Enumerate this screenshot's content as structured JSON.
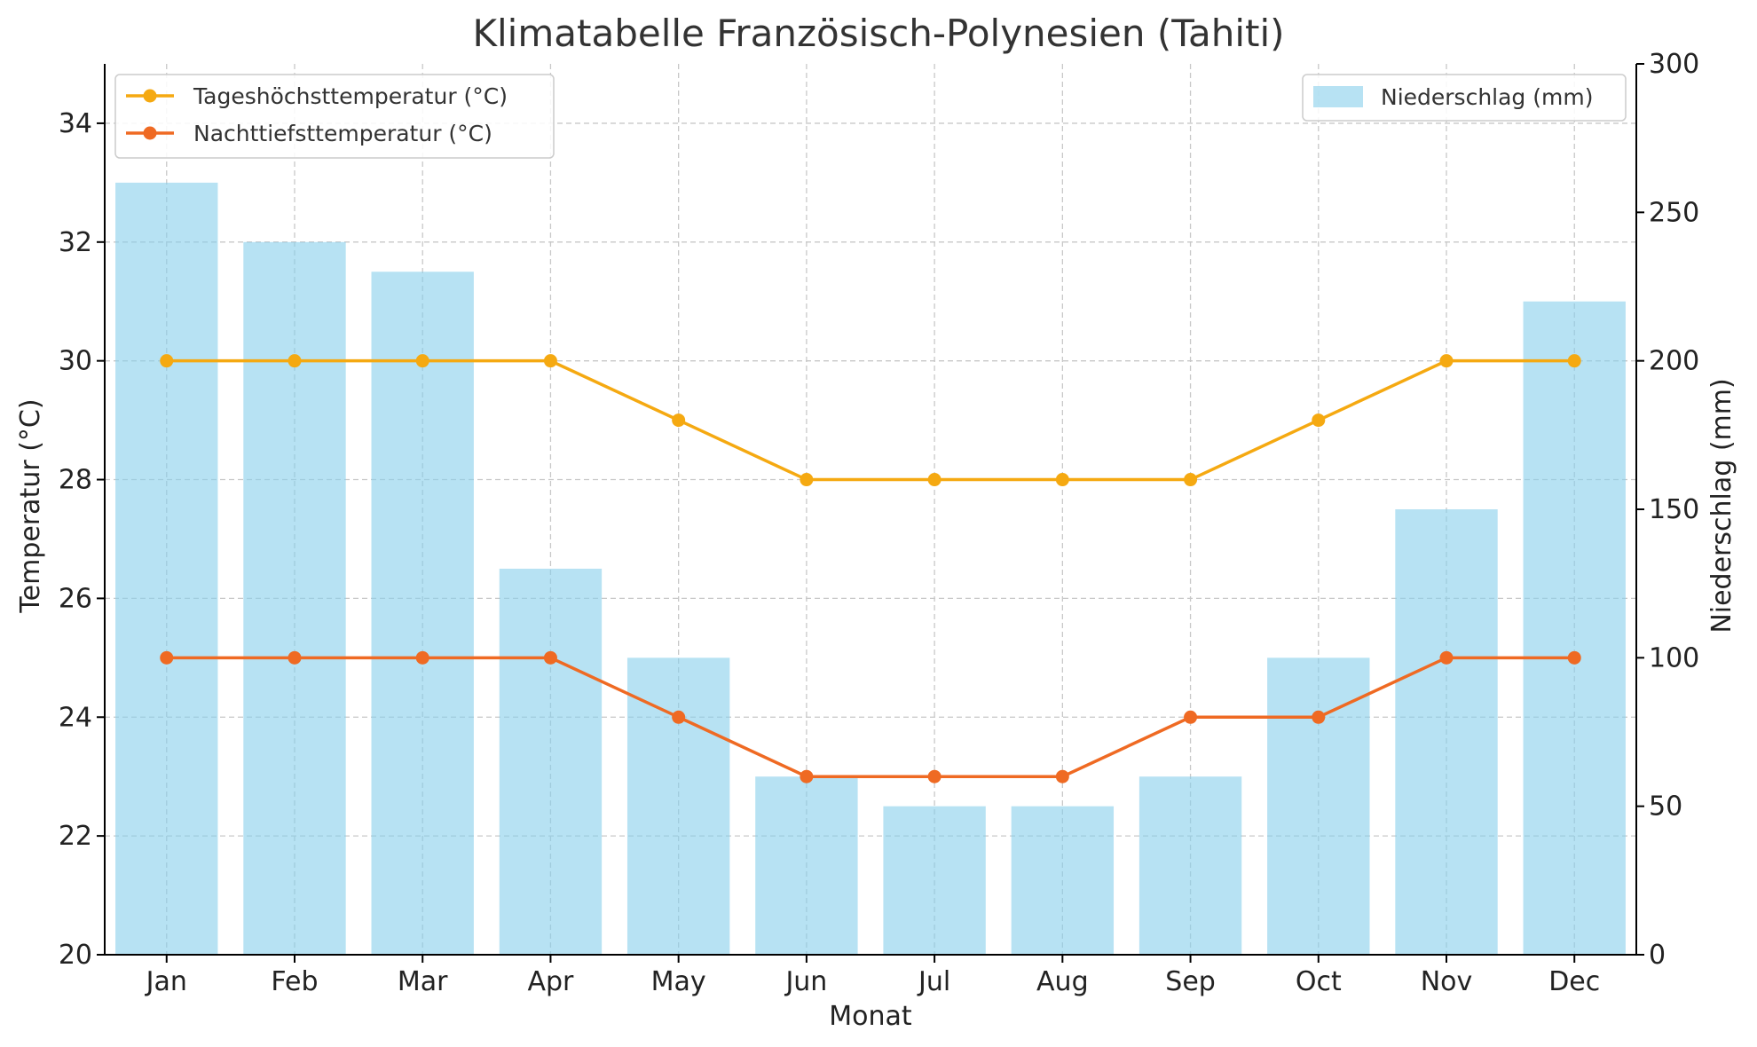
{
  "chart_data": {
    "type": "bar",
    "title": "Klimatabelle Französisch-Polynesien (Tahiti)",
    "xlabel": "Monat",
    "ylabel": "Temperatur (°C)",
    "ylabel_right": "Niederschlag (mm)",
    "categories": [
      "Jan",
      "Feb",
      "Mar",
      "Apr",
      "May",
      "Jun",
      "Jul",
      "Aug",
      "Sep",
      "Oct",
      "Nov",
      "Dec"
    ],
    "ylim": [
      20,
      35
    ],
    "ylim_right": [
      0,
      300
    ],
    "yticks": [
      "20",
      "22",
      "24",
      "26",
      "28",
      "30",
      "32",
      "34"
    ],
    "yticks_right": [
      "0",
      "50",
      "100",
      "150",
      "200",
      "250",
      "300"
    ],
    "grid": true,
    "series": [
      {
        "name": "Niederschlag (mm)",
        "type": "bar",
        "axis": "right",
        "color": "#87ceeb",
        "values": [
          260,
          240,
          230,
          130,
          100,
          60,
          50,
          50,
          60,
          100,
          150,
          220
        ]
      },
      {
        "name": "Tageshöchsttemperatur (°C)",
        "type": "line",
        "axis": "left",
        "color": "#f5a911",
        "values": [
          30,
          30,
          30,
          30,
          29,
          28,
          28,
          28,
          28,
          29,
          30,
          30
        ]
      },
      {
        "name": "Nachttiefsttemperatur (°C)",
        "type": "line",
        "axis": "left",
        "color": "#ef6a23",
        "values": [
          25,
          25,
          25,
          25,
          24,
          23,
          23,
          23,
          24,
          24,
          25,
          25
        ]
      }
    ],
    "legend_left_placement": "upper-left",
    "legend_right_placement": "upper-right"
  }
}
